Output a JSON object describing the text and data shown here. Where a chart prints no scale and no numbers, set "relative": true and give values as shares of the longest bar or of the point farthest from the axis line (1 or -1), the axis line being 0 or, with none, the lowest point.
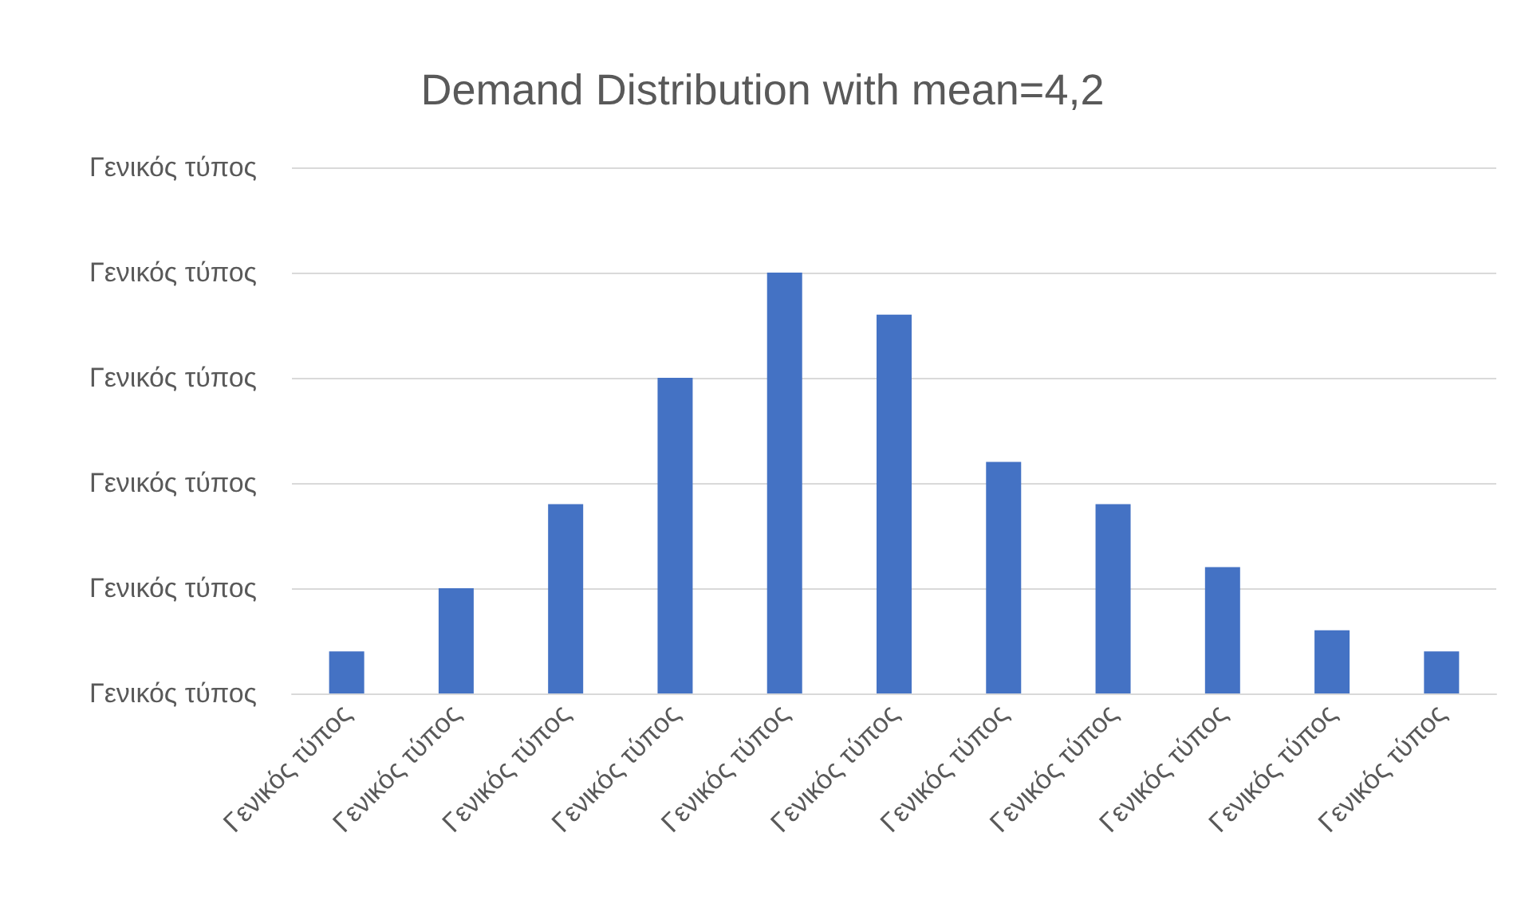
{
  "chart_data": {
    "type": "bar",
    "title": "Demand Distribution with mean=4,2",
    "categories": [
      "Γενικός τύπος",
      "Γενικός τύπος",
      "Γενικός τύπος",
      "Γενικός τύπος",
      "Γενικός τύπος",
      "Γενικός τύπος",
      "Γενικός τύπος",
      "Γενικός τύπος",
      "Γενικός τύπος",
      "Γενικός τύπος",
      "Γενικός τύπος"
    ],
    "values": [
      0.1,
      0.25,
      0.45,
      0.75,
      1,
      0.9,
      0.55,
      0.45,
      0.3,
      0.15,
      0.1
    ],
    "color": "#4472c4",
    "relative": true,
    "grid": "y",
    "annotations": [
      "Γενικός τύπος",
      "Γενικός τύπος",
      "Γενικός τύπος",
      "Γενικός τύπος",
      "Γενικός τύπος",
      "Γενικός τύπος"
    ]
  }
}
